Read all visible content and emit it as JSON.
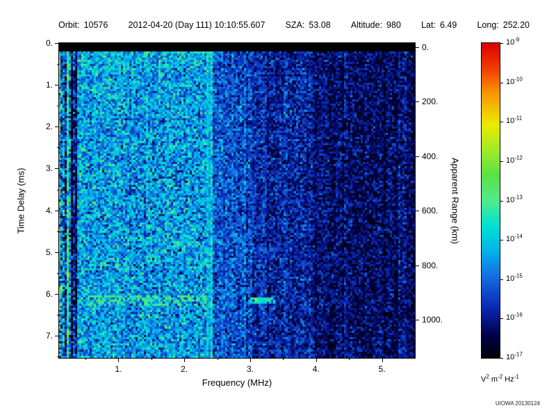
{
  "header": {
    "orbit": {
      "label": "Orbit:",
      "value": "10576"
    },
    "datetime": "2012-04-20 (Day 111) 10:10:55.607",
    "sza": {
      "label": "SZA:",
      "value": "53.08"
    },
    "altitude": {
      "label": "Altitude:",
      "value": "980"
    },
    "lat": {
      "label": "Lat:",
      "value": "6.49"
    },
    "long": {
      "label": "Long:",
      "value": "252.20"
    }
  },
  "credit": "UIOWA 20130124",
  "colorbar": {
    "exponents": [
      "-9",
      "-10",
      "-11",
      "-12",
      "-13",
      "-14",
      "-15",
      "-16",
      "-17"
    ],
    "units_parts": [
      [
        "V",
        "2"
      ],
      [
        " m",
        "-2"
      ],
      [
        " Hz",
        "-1"
      ]
    ],
    "scale": "log10",
    "min": 1e-17,
    "max": 1e-09
  },
  "chart_data": {
    "type": "heatmap",
    "title": "",
    "xlabel": "Frequency (MHz)",
    "ylabel": "Time Delay (ms)",
    "y2label": "Apparent Range (km)",
    "zlabel": "V^2 m^-2 Hz^-1 (log color scale)",
    "xlim": [
      0.1,
      5.5
    ],
    "ylim": [
      0,
      7.53
    ],
    "zlim_exp": [
      -17,
      -9
    ],
    "x_ticks": [
      "1.",
      "2.",
      "3.",
      "4.",
      "5."
    ],
    "y_ticks": [
      "0.",
      "1.",
      "2.",
      "3.",
      "4.",
      "5.",
      "6.",
      "7."
    ],
    "y2_ticks": [
      "0.",
      "200.",
      "400.",
      "600.",
      "800.",
      "1000."
    ],
    "top_blanked_band_ms": [
      0,
      0.2
    ],
    "frequency_bands": [
      {
        "f_range": [
          0.1,
          0.18
        ],
        "mean_log10_power": -14.0,
        "noise_sigma": 1.2,
        "note": "bright/dark vertical striping at lowest frequencies"
      },
      {
        "f_range": [
          0.18,
          0.24
        ],
        "mean_log10_power": -16.2,
        "noise_sigma": 0.8,
        "note": "dark vertical stripe"
      },
      {
        "f_range": [
          0.24,
          0.3
        ],
        "mean_log10_power": -14.3,
        "noise_sigma": 1.0,
        "note": "bright stripe"
      },
      {
        "f_range": [
          0.3,
          0.38
        ],
        "mean_log10_power": -16.0,
        "noise_sigma": 0.9,
        "note": "dark stripe"
      },
      {
        "f_range": [
          0.38,
          2.35
        ],
        "mean_log10_power": -14.5,
        "noise_sigma": 0.75,
        "note": "broad bright cyan diffuse echo region"
      },
      {
        "f_range": [
          2.35,
          2.45
        ],
        "mean_log10_power": -13.9,
        "noise_sigma": 0.5,
        "note": "narrow bright vertical line near 2.4 MHz"
      },
      {
        "f_range": [
          2.45,
          3.05
        ],
        "mean_log10_power": -15.2,
        "noise_sigma": 0.6,
        "note": "medium blue"
      },
      {
        "f_range": [
          3.05,
          3.95
        ],
        "mean_log10_power": -15.8,
        "noise_sigma": 0.55,
        "note": "dark blue speckle"
      },
      {
        "f_range": [
          3.95,
          5.5
        ],
        "mean_log10_power": -16.3,
        "noise_sigma": 0.5,
        "note": "very dark blue / black patches"
      }
    ],
    "features": [
      {
        "name": "green horizontal echo streak",
        "f_range": [
          0.55,
          2.33
        ],
        "t_range": [
          6.03,
          6.28
        ],
        "log10_power": -13.0,
        "coverage": 0.45
      },
      {
        "name": "short bright echo dash",
        "f_range": [
          3.02,
          3.38
        ],
        "t_range": [
          6.08,
          6.22
        ],
        "log10_power": -13.5,
        "coverage": 0.9
      }
    ],
    "column_striping": {
      "below_mhz": 0.38,
      "sigma": 1.1,
      "elsewhere_sigma": 0.18
    },
    "top_edge_brightening": {
      "t_below_ms": 0.6,
      "f_below_mhz": 2.5,
      "delta": 0.3
    },
    "colormap_stops": [
      [
        0.0,
        [
          0,
          0,
          12
        ]
      ],
      [
        0.07,
        [
          0,
          0,
          70
        ]
      ],
      [
        0.16,
        [
          10,
          40,
          180
        ]
      ],
      [
        0.26,
        [
          20,
          110,
          225
        ]
      ],
      [
        0.34,
        [
          0,
          180,
          235
        ]
      ],
      [
        0.42,
        [
          0,
          225,
          210
        ]
      ],
      [
        0.5,
        [
          80,
          235,
          140
        ]
      ],
      [
        0.58,
        [
          90,
          225,
          70
        ]
      ],
      [
        0.66,
        [
          160,
          235,
          40
        ]
      ],
      [
        0.74,
        [
          235,
          235,
          0
        ]
      ],
      [
        0.84,
        [
          250,
          150,
          0
        ]
      ],
      [
        0.92,
        [
          240,
          60,
          0
        ]
      ],
      [
        1.0,
        [
          220,
          0,
          0
        ]
      ]
    ]
  }
}
